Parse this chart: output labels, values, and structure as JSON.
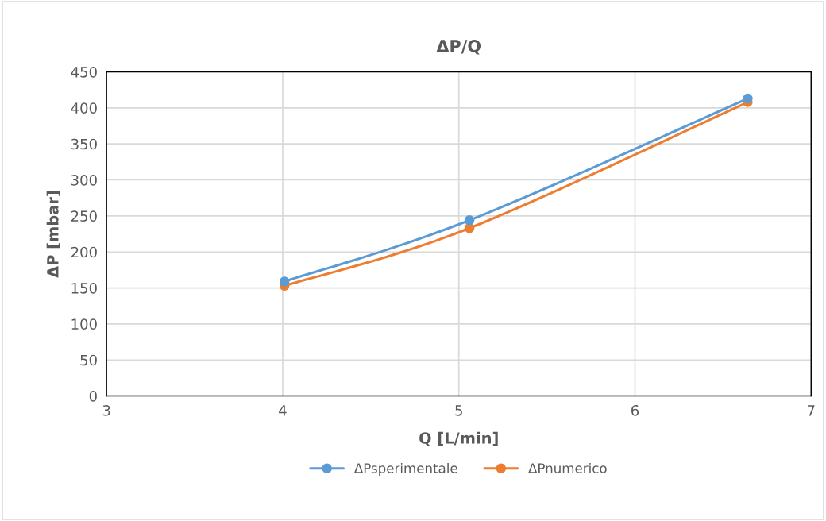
{
  "chart_data": {
    "type": "line",
    "title": "ΔP/Q",
    "xlabel": "Q [L/min]",
    "ylabel": "ΔP [mbar]",
    "x": [
      4.01,
      5.06,
      6.64
    ],
    "series": [
      {
        "name": "ΔPsperimentale",
        "color": "#5b9bd5",
        "values": [
          159,
          244,
          413
        ]
      },
      {
        "name": "ΔPnumerico",
        "color": "#ed7d31",
        "values": [
          153,
          233,
          408
        ]
      }
    ],
    "xlim": [
      3,
      7
    ],
    "xticks": [
      3,
      4,
      5,
      6,
      7
    ],
    "ylim": [
      0,
      450
    ],
    "yticks": [
      0,
      50,
      100,
      150,
      200,
      250,
      300,
      350,
      400,
      450
    ],
    "grid": true,
    "legend": "bottom",
    "marker": "circle",
    "line_style": "solid"
  }
}
